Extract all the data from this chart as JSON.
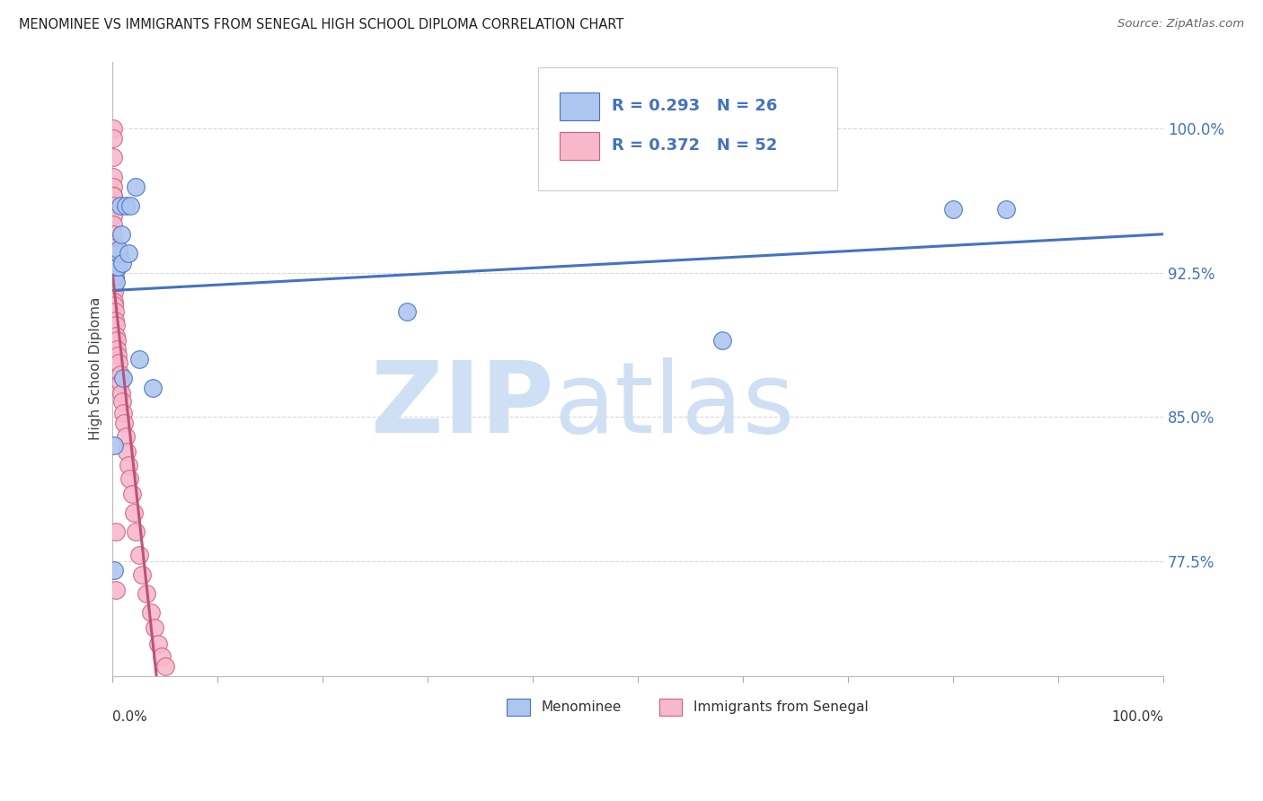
{
  "title": "MENOMINEE VS IMMIGRANTS FROM SENEGAL HIGH SCHOOL DIPLOMA CORRELATION CHART",
  "source": "Source: ZipAtlas.com",
  "ylabel": "High School Diploma",
  "ytick_values": [
    1.0,
    0.925,
    0.85,
    0.775
  ],
  "ytick_labels": [
    "100.0%",
    "92.5%",
    "85.0%",
    "77.5%"
  ],
  "background_color": "#ffffff",
  "grid_color": "#d8d8d8",
  "menominee_color": "#adc6ef",
  "senegal_color": "#f8b8cb",
  "menominee_edge_color": "#4472c4",
  "senegal_edge_color": "#d06080",
  "menominee_line_color": "#4472c4",
  "senegal_line_color": "#c0507a",
  "legend_r1": "R = 0.293",
  "legend_n1": "N = 26",
  "legend_r2": "R = 0.372",
  "legend_n2": "N = 52",
  "xmin": 0.0,
  "xmax": 1.0,
  "ymin": 0.715,
  "ymax": 1.035,
  "menominee_x": [
    0.001,
    0.001,
    0.002,
    0.002,
    0.003,
    0.003,
    0.004,
    0.004,
    0.005,
    0.005,
    0.006,
    0.006,
    0.007,
    0.008,
    0.009,
    0.01,
    0.012,
    0.015,
    0.017,
    0.022,
    0.025,
    0.038,
    0.28,
    0.58,
    0.8,
    0.85
  ],
  "menominee_y": [
    0.835,
    0.77,
    0.923,
    0.928,
    0.92,
    0.928,
    0.93,
    0.935,
    0.935,
    0.928,
    0.935,
    0.937,
    0.96,
    0.945,
    0.93,
    0.87,
    0.96,
    0.935,
    0.96,
    0.97,
    0.88,
    0.865,
    0.905,
    0.89,
    0.958,
    0.958
  ],
  "senegal_x": [
    0.0002,
    0.0002,
    0.0003,
    0.0003,
    0.0004,
    0.0004,
    0.0005,
    0.0005,
    0.0006,
    0.0006,
    0.0007,
    0.0007,
    0.0008,
    0.0008,
    0.0009,
    0.001,
    0.001,
    0.0012,
    0.0013,
    0.0015,
    0.0016,
    0.002,
    0.002,
    0.003,
    0.003,
    0.004,
    0.004,
    0.005,
    0.006,
    0.007,
    0.007,
    0.008,
    0.009,
    0.01,
    0.011,
    0.012,
    0.013,
    0.015,
    0.016,
    0.018,
    0.02,
    0.022,
    0.025,
    0.028,
    0.032,
    0.036,
    0.04,
    0.043,
    0.047,
    0.05,
    0.003,
    0.003
  ],
  "senegal_y": [
    1.0,
    0.995,
    0.985,
    0.975,
    0.97,
    0.965,
    0.965,
    0.96,
    0.955,
    0.95,
    0.945,
    0.94,
    0.938,
    0.932,
    0.928,
    0.928,
    0.922,
    0.918,
    0.915,
    0.91,
    0.908,
    0.905,
    0.9,
    0.898,
    0.892,
    0.89,
    0.885,
    0.882,
    0.878,
    0.872,
    0.868,
    0.862,
    0.858,
    0.852,
    0.847,
    0.84,
    0.832,
    0.825,
    0.818,
    0.81,
    0.8,
    0.79,
    0.778,
    0.768,
    0.758,
    0.748,
    0.74,
    0.732,
    0.725,
    0.72,
    0.79,
    0.76
  ]
}
